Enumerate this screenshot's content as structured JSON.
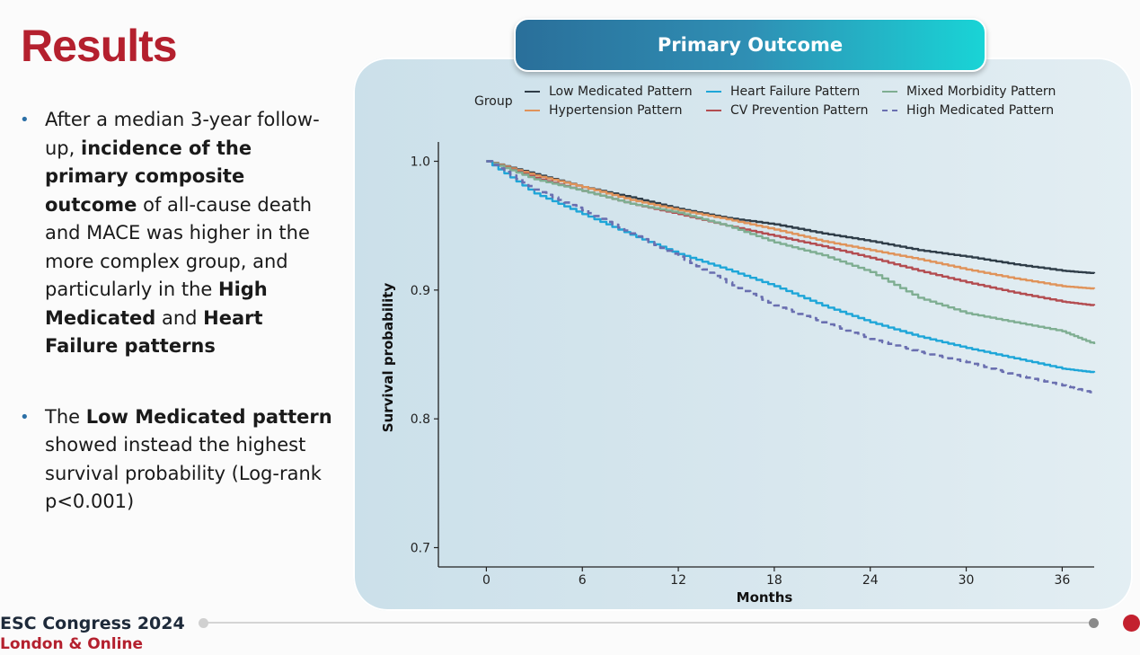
{
  "slide": {
    "title": "Results",
    "bullet1": {
      "t1": "After a median 3-year follow-up, ",
      "b1": "incidence of the primary composite outcome",
      "t2": " of all-cause death and MACE was higher in the more complex group, and particularly in the ",
      "b2": "High Medicated",
      "t3": " and ",
      "b3": "Heart Failure patterns"
    },
    "bullet2": {
      "t1": "The ",
      "b1": "Low Medicated pattern",
      "t2": " showed instead the highest survival probability (Log-rank p<0.001)"
    },
    "bullet_glyph": "•"
  },
  "banner": {
    "title": "Primary Outcome"
  },
  "footer": {
    "brand": "ESC Congress 2024",
    "sub": "London & Online"
  },
  "colors": {
    "brand_red": "#b4202e",
    "banner_start": "#2a6f9a",
    "banner_end": "#19d4d6"
  },
  "chart_data": {
    "type": "line",
    "title": "",
    "xlabel": "Months",
    "ylabel": "Survival probability",
    "legend_title": "Group",
    "legend_position": "top",
    "xlim": [
      -3,
      38
    ],
    "ylim": [
      0.685,
      1.015
    ],
    "xticks": [
      0,
      6,
      12,
      18,
      24,
      30,
      36
    ],
    "yticks": [
      0.7,
      0.8,
      0.9,
      1.0
    ],
    "ytick_labels": [
      "0.7",
      "0.8",
      "0.9",
      "1.0"
    ],
    "grid": false,
    "series": [
      {
        "name": "Low Medicated Pattern",
        "color": "#2f3d48",
        "dash": false,
        "x": [
          0,
          3,
          6,
          9,
          12,
          15,
          18,
          21,
          24,
          27,
          30,
          33,
          36,
          38
        ],
        "y": [
          1.0,
          0.99,
          0.98,
          0.972,
          0.963,
          0.956,
          0.951,
          0.944,
          0.938,
          0.931,
          0.926,
          0.92,
          0.915,
          0.913
        ]
      },
      {
        "name": "Hypertension Pattern",
        "color": "#e0935a",
        "dash": false,
        "x": [
          0,
          3,
          6,
          9,
          12,
          15,
          18,
          21,
          24,
          27,
          30,
          33,
          36,
          38
        ],
        "y": [
          1.0,
          0.989,
          0.98,
          0.97,
          0.962,
          0.955,
          0.947,
          0.938,
          0.931,
          0.924,
          0.916,
          0.909,
          0.903,
          0.901
        ]
      },
      {
        "name": "CV Prevention Pattern",
        "color": "#b34c50",
        "dash": false,
        "x": [
          0,
          3,
          6,
          9,
          12,
          15,
          18,
          21,
          24,
          27,
          30,
          33,
          36,
          38
        ],
        "y": [
          1.0,
          0.987,
          0.977,
          0.967,
          0.959,
          0.95,
          0.942,
          0.934,
          0.925,
          0.915,
          0.906,
          0.898,
          0.891,
          0.888
        ]
      },
      {
        "name": "Mixed Morbidity Pattern",
        "color": "#7fae92",
        "dash": false,
        "x": [
          0,
          3,
          6,
          9,
          12,
          15,
          18,
          21,
          24,
          27,
          30,
          33,
          36,
          38
        ],
        "y": [
          1.0,
          0.986,
          0.977,
          0.967,
          0.96,
          0.95,
          0.937,
          0.927,
          0.914,
          0.894,
          0.882,
          0.875,
          0.868,
          0.858
        ]
      },
      {
        "name": "Heart Failure Pattern",
        "color": "#1ea6d8",
        "dash": false,
        "x": [
          0,
          3,
          6,
          9,
          12,
          15,
          18,
          21,
          24,
          27,
          30,
          33,
          36,
          38
        ],
        "y": [
          1.0,
          0.975,
          0.959,
          0.943,
          0.928,
          0.916,
          0.903,
          0.888,
          0.875,
          0.864,
          0.855,
          0.847,
          0.839,
          0.836
        ]
      },
      {
        "name": "High Medicated Pattern",
        "color": "#6a6fb0",
        "dash": true,
        "x": [
          0,
          3,
          6,
          9,
          12,
          15,
          18,
          21,
          24,
          27,
          30,
          33,
          36,
          38
        ],
        "y": [
          1.0,
          0.978,
          0.962,
          0.944,
          0.926,
          0.906,
          0.888,
          0.875,
          0.862,
          0.852,
          0.844,
          0.834,
          0.826,
          0.82
        ]
      }
    ]
  }
}
